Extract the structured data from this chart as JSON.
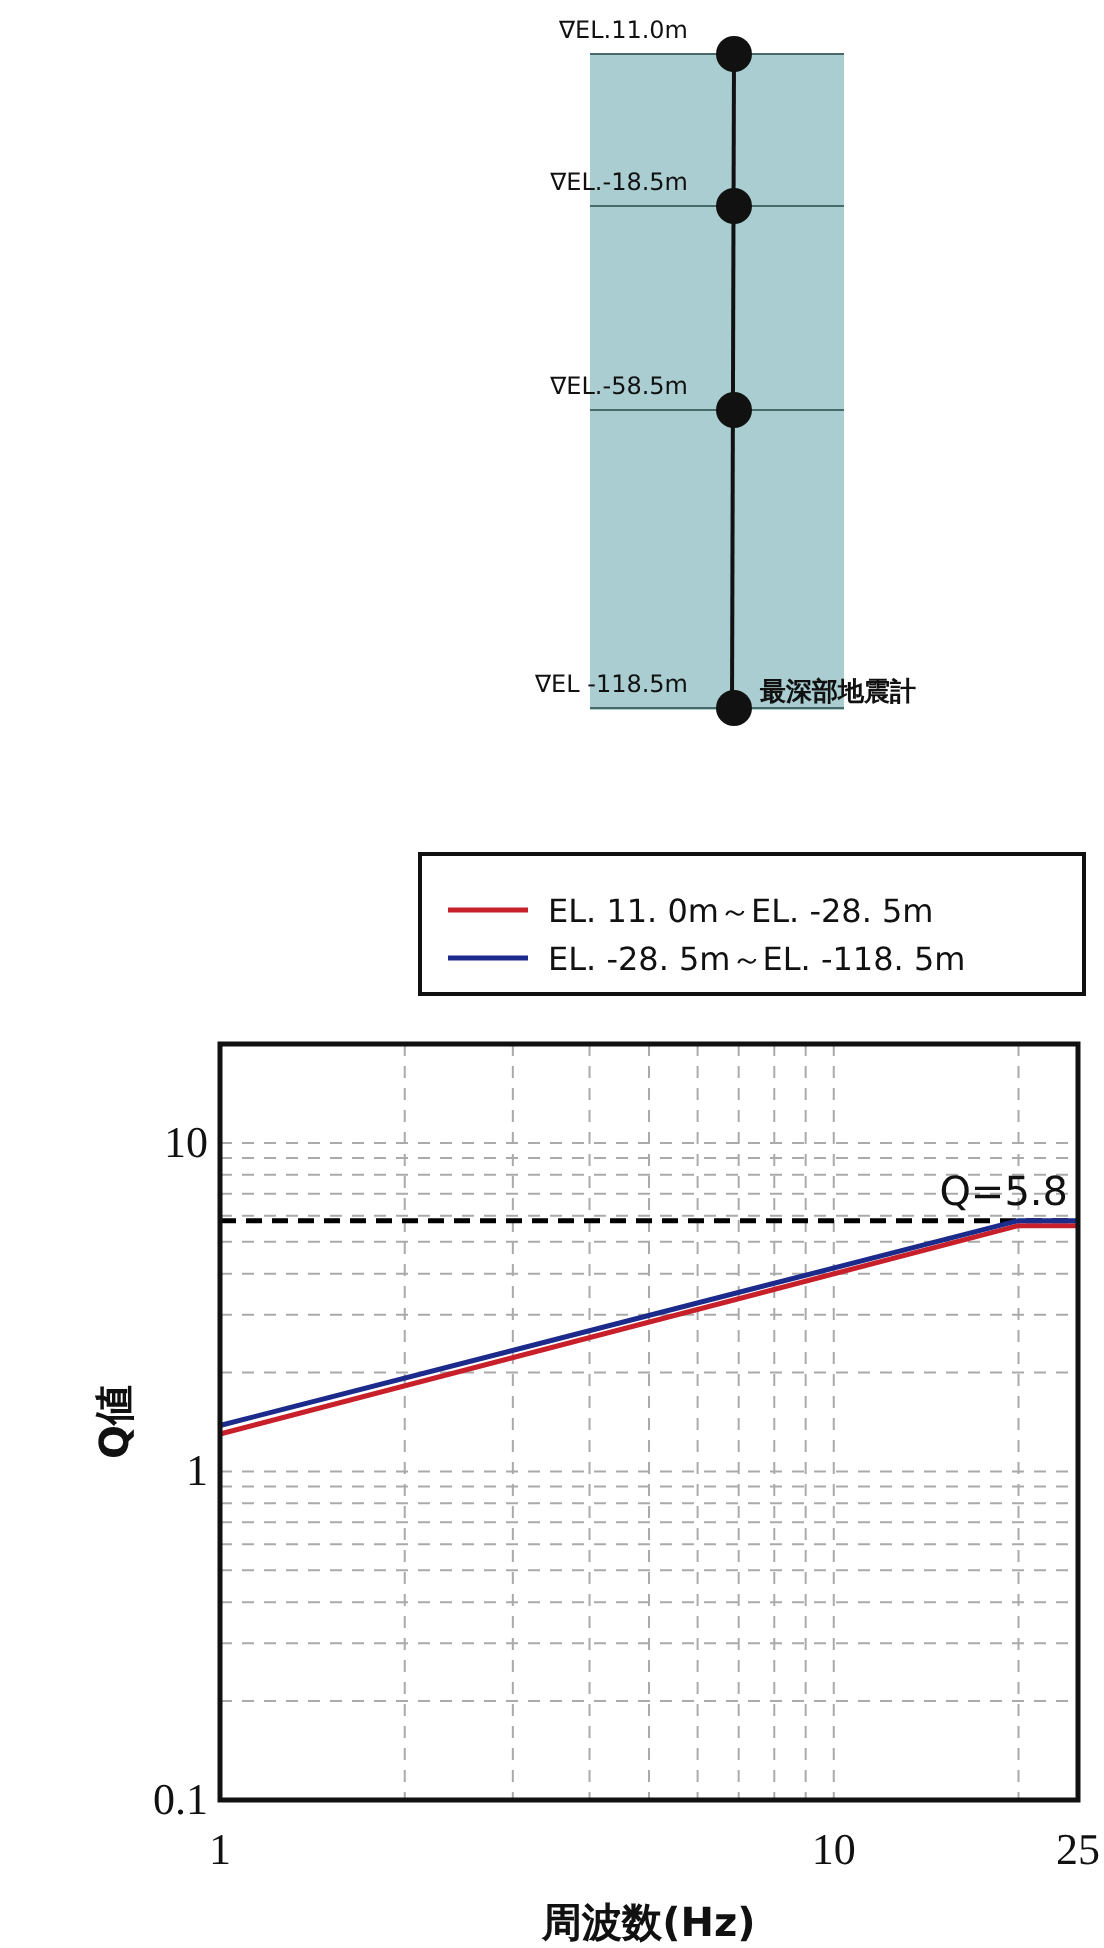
{
  "chart_data": {
    "type": "line",
    "xlabel": "周波数(Hz)",
    "ylabel": "Q値",
    "x": [
      1,
      20,
      25
    ],
    "series": [
      {
        "name": "EL. 11. 0m～EL. -28. 5m",
        "color": "#c8202a",
        "values": [
          1.3,
          5.6,
          5.6
        ]
      },
      {
        "name": "EL. -28. 5m～EL. -118. 5m",
        "color": "#1c2a8c",
        "values": [
          1.38,
          5.8,
          5.8
        ]
      }
    ],
    "xlim": [
      1,
      25
    ],
    "ylim": [
      0.1,
      20
    ],
    "log": "xy",
    "xticks": [
      1,
      {
        "value": 2,
        "label": null
      },
      {
        "value": 3,
        "label": null
      },
      {
        "value": 4,
        "label": null
      },
      {
        "value": 5,
        "label": null
      },
      {
        "value": 6,
        "label": null
      },
      {
        "value": 7,
        "label": null
      },
      {
        "value": 8,
        "label": null
      },
      {
        "value": 9,
        "label": null
      },
      10,
      {
        "value": 20,
        "label": null
      },
      25
    ],
    "yticks": [
      0.1,
      {
        "value": 0.2,
        "label": null
      },
      {
        "value": 0.3,
        "label": null
      },
      {
        "value": 0.4,
        "label": null
      },
      {
        "value": 0.5,
        "label": null
      },
      {
        "value": 0.6,
        "label": null
      },
      {
        "value": 0.7,
        "label": null
      },
      {
        "value": 0.8,
        "label": null
      },
      {
        "value": 0.9,
        "label": null
      },
      1,
      {
        "value": 2,
        "label": null
      },
      {
        "value": 3,
        "label": null
      },
      {
        "value": 4,
        "label": null
      },
      {
        "value": 5,
        "label": null
      },
      {
        "value": 6,
        "label": null
      },
      {
        "value": 7,
        "label": null
      },
      {
        "value": 8,
        "label": null
      },
      {
        "value": 9,
        "label": null
      },
      10
    ],
    "grid": true,
    "legend": "top",
    "ref_lines": [
      {
        "axis": "y",
        "value": 5.8,
        "label": "Q=5.8",
        "color": "#000000",
        "line_style": "dashed"
      }
    ],
    "annotations": [
      "∇EL.11.0m",
      "∇EL.-18.5m",
      "∇EL.-58.5m",
      "∇EL -118.5m",
      "最深部地震計"
    ]
  }
}
